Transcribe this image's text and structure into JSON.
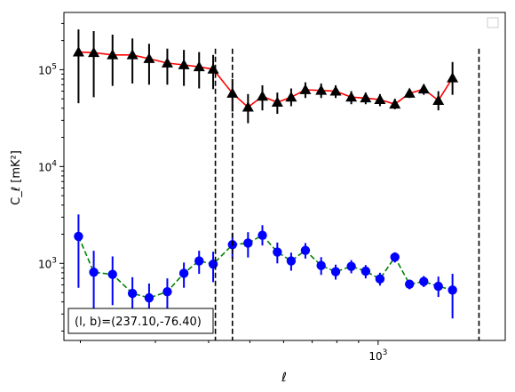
{
  "chart_data": {
    "type": "scatter",
    "title": "",
    "xlabel": "ℓ",
    "ylabel": "C_ℓ  [mK²]",
    "xscale": "log",
    "yscale": "log",
    "xlim": [
      183,
      1988
    ],
    "ylim": [
      160,
      390000
    ],
    "grid": false,
    "legend": "upper right (empty)",
    "x_ticklabels": [
      "10^3"
    ],
    "y_ticklabels": [
      "10^3",
      "10^4",
      "10^5"
    ],
    "annotation": "(l, b)=(237.10,-76.40)",
    "vlines": [
      415,
      455,
      1725
    ],
    "series": [
      {
        "marker": "triangle",
        "marker_color": "#000000",
        "line_color": "#ff0000",
        "linestyle": "solid",
        "errorbar_color": "#000000",
        "points": [
          {
            "x": 198,
            "y": 152000,
            "lo": 45000,
            "hi": 260000
          },
          {
            "x": 215,
            "y": 150000,
            "lo": 52000,
            "hi": 250000
          },
          {
            "x": 238,
            "y": 142000,
            "lo": 68000,
            "hi": 230000
          },
          {
            "x": 265,
            "y": 142000,
            "lo": 72000,
            "hi": 210000
          },
          {
            "x": 290,
            "y": 130000,
            "lo": 70000,
            "hi": 185000
          },
          {
            "x": 320,
            "y": 117000,
            "lo": 70000,
            "hi": 165000
          },
          {
            "x": 350,
            "y": 112000,
            "lo": 68000,
            "hi": 160000
          },
          {
            "x": 380,
            "y": 107000,
            "lo": 64000,
            "hi": 152000
          },
          {
            "x": 410,
            "y": 101000,
            "lo": 63000,
            "hi": 142000
          },
          {
            "x": 455,
            "y": 57000,
            "lo": 37000,
            "hi": 80000
          },
          {
            "x": 495,
            "y": 41000,
            "lo": 28000,
            "hi": 56000
          },
          {
            "x": 535,
            "y": 53000,
            "lo": 38000,
            "hi": 69000
          },
          {
            "x": 580,
            "y": 46000,
            "lo": 35000,
            "hi": 58000
          },
          {
            "x": 625,
            "y": 52000,
            "lo": 42000,
            "hi": 64000
          },
          {
            "x": 675,
            "y": 62000,
            "lo": 51000,
            "hi": 74000
          },
          {
            "x": 735,
            "y": 61000,
            "lo": 51000,
            "hi": 72000
          },
          {
            "x": 795,
            "y": 60000,
            "lo": 51000,
            "hi": 69000
          },
          {
            "x": 865,
            "y": 52000,
            "lo": 44000,
            "hi": 60000
          },
          {
            "x": 935,
            "y": 51000,
            "lo": 44000,
            "hi": 58000
          },
          {
            "x": 1010,
            "y": 49000,
            "lo": 42000,
            "hi": 56000
          },
          {
            "x": 1095,
            "y": 44000,
            "lo": 39000,
            "hi": 50000
          },
          {
            "x": 1185,
            "y": 57000,
            "lo": 51000,
            "hi": 63000
          },
          {
            "x": 1280,
            "y": 63000,
            "lo": 55000,
            "hi": 70000
          },
          {
            "x": 1385,
            "y": 48000,
            "lo": 38000,
            "hi": 60000
          },
          {
            "x": 1495,
            "y": 82000,
            "lo": 55000,
            "hi": 120000
          }
        ]
      },
      {
        "marker": "circle",
        "marker_color": "#0000ff",
        "line_color": "#008000",
        "linestyle": "dashed",
        "errorbar_color": "#0000ff",
        "points": [
          {
            "x": 198,
            "y": 1900,
            "lo": 560,
            "hi": 3200
          },
          {
            "x": 215,
            "y": 810,
            "lo": 330,
            "hi": 1350
          },
          {
            "x": 238,
            "y": 770,
            "lo": 370,
            "hi": 1180
          },
          {
            "x": 265,
            "y": 490,
            "lo": 260,
            "hi": 720
          },
          {
            "x": 290,
            "y": 440,
            "lo": 260,
            "hi": 620
          },
          {
            "x": 320,
            "y": 510,
            "lo": 320,
            "hi": 700
          },
          {
            "x": 350,
            "y": 790,
            "lo": 560,
            "hi": 1020
          },
          {
            "x": 380,
            "y": 1060,
            "lo": 780,
            "hi": 1350
          },
          {
            "x": 410,
            "y": 980,
            "lo": 640,
            "hi": 1320
          },
          {
            "x": 455,
            "y": 1560,
            "lo": 1120,
            "hi": 2050
          },
          {
            "x": 495,
            "y": 1620,
            "lo": 1150,
            "hi": 2100
          },
          {
            "x": 535,
            "y": 1950,
            "lo": 1530,
            "hi": 2480
          },
          {
            "x": 580,
            "y": 1310,
            "lo": 1000,
            "hi": 1640
          },
          {
            "x": 625,
            "y": 1060,
            "lo": 840,
            "hi": 1290
          },
          {
            "x": 675,
            "y": 1360,
            "lo": 1120,
            "hi": 1620
          },
          {
            "x": 735,
            "y": 950,
            "lo": 760,
            "hi": 1160
          },
          {
            "x": 795,
            "y": 820,
            "lo": 680,
            "hi": 970
          },
          {
            "x": 865,
            "y": 930,
            "lo": 790,
            "hi": 1080
          },
          {
            "x": 935,
            "y": 830,
            "lo": 700,
            "hi": 960
          },
          {
            "x": 1010,
            "y": 690,
            "lo": 590,
            "hi": 800
          },
          {
            "x": 1095,
            "y": 1160,
            "lo": 1020,
            "hi": 1300
          },
          {
            "x": 1185,
            "y": 610,
            "lo": 540,
            "hi": 680
          },
          {
            "x": 1280,
            "y": 650,
            "lo": 570,
            "hi": 740
          },
          {
            "x": 1385,
            "y": 580,
            "lo": 450,
            "hi": 730
          },
          {
            "x": 1495,
            "y": 530,
            "lo": 270,
            "hi": 780
          }
        ]
      }
    ]
  }
}
